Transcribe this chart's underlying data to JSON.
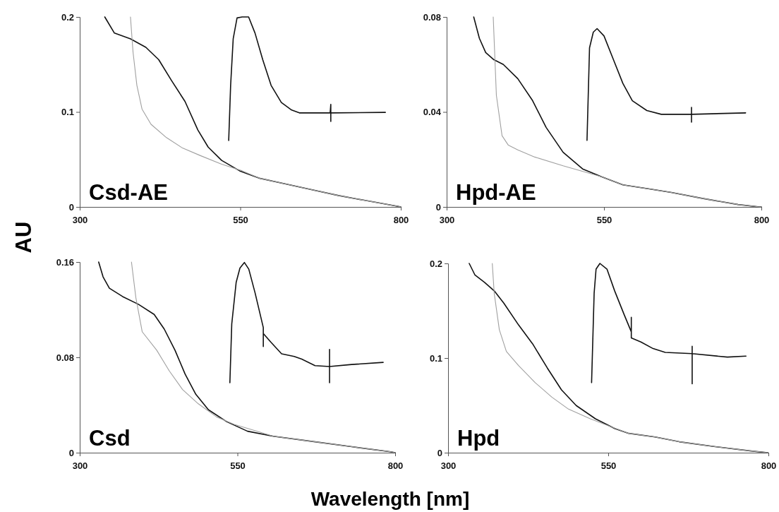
{
  "chart_data": [
    {
      "type": "line",
      "title": "Csd-AE",
      "ylabel": "AU",
      "xlim": [
        300,
        800
      ],
      "xticks": [
        300,
        550,
        800
      ],
      "ylim": [
        0,
        0.2
      ],
      "yticks": [
        0,
        0.1,
        0.2
      ],
      "grid": false,
      "series": [
        {
          "color": "#111111",
          "x": [
            339,
            354,
            379,
            403,
            423,
            443,
            464,
            484,
            500,
            521,
            549,
            581,
            622,
            662,
            703,
            743,
            796,
            800
          ],
          "values": [
            0.2,
            0.183,
            0.177,
            0.168,
            0.155,
            0.133,
            0.111,
            0.081,
            0.063,
            0.049,
            0.038,
            0.03,
            0.024,
            0.018,
            0.012,
            0.007,
            0.0005,
            0
          ]
        },
        {
          "color": "#a0a0a0",
          "x": [
            379,
            383,
            389,
            397,
            411,
            435,
            460,
            488,
            521,
            553,
            581,
            622,
            662,
            703,
            743,
            796,
            800
          ],
          "values": [
            0.2,
            0.163,
            0.128,
            0.103,
            0.087,
            0.073,
            0.062,
            0.054,
            0.045,
            0.038,
            0.03,
            0.024,
            0.018,
            0.012,
            0.007,
            0.0005,
            0
          ]
        },
        {
          "color": "#111111",
          "x": [
            532,
            535,
            539,
            545,
            553,
            563,
            573,
            585,
            598,
            614,
            630,
            642,
            690,
            691,
            691,
            691,
            776
          ],
          "values": [
            0.07,
            0.128,
            0.177,
            0.199,
            0.2,
            0.2,
            0.183,
            0.155,
            0.128,
            0.11,
            0.102,
            0.099,
            0.099,
            0.108,
            0.09,
            0.099,
            0.0995
          ]
        }
      ]
    },
    {
      "type": "line",
      "title": "Hpd-AE",
      "xlim": [
        300,
        800
      ],
      "xticks": [
        300,
        550,
        800
      ],
      "ylim": [
        0,
        0.08
      ],
      "yticks": [
        0,
        0.04,
        0.08
      ],
      "grid": false,
      "series": [
        {
          "color": "#111111",
          "x": [
            343,
            352,
            362,
            375,
            390,
            413,
            436,
            458,
            485,
            516,
            546,
            580,
            622,
            657,
            706,
            763,
            797,
            800
          ],
          "values": [
            0.08,
            0.071,
            0.065,
            0.062,
            0.06,
            0.054,
            0.045,
            0.0335,
            0.023,
            0.016,
            0.0127,
            0.0093,
            0.0076,
            0.0061,
            0.0036,
            0.001,
            0,
            0
          ]
        },
        {
          "color": "#a0a0a0",
          "x": [
            374,
            379,
            388,
            398,
            413,
            440,
            485,
            546,
            580,
            622,
            657,
            706,
            763,
            797,
            800
          ],
          "values": [
            0.08,
            0.047,
            0.03,
            0.026,
            0.024,
            0.021,
            0.0173,
            0.0127,
            0.0093,
            0.0076,
            0.0061,
            0.0036,
            0.001,
            0,
            0
          ]
        },
        {
          "color": "#111111",
          "x": [
            523,
            527,
            533,
            539,
            550,
            565,
            580,
            595,
            618,
            641,
            689,
            689,
            689,
            689,
            775
          ],
          "values": [
            0.028,
            0.067,
            0.0736,
            0.0751,
            0.072,
            0.062,
            0.052,
            0.0447,
            0.0406,
            0.039,
            0.039,
            0.0419,
            0.0357,
            0.039,
            0.0396
          ]
        }
      ]
    },
    {
      "type": "line",
      "title": "Csd",
      "xlabel": "Wavelength [nm]",
      "xlim": [
        300,
        800
      ],
      "xticks": [
        300,
        550,
        800
      ],
      "ylim": [
        0,
        0.16
      ],
      "yticks": [
        0,
        0.08,
        0.16
      ],
      "grid": false,
      "series": [
        {
          "color": "#111111",
          "x": [
            330,
            337,
            347,
            368,
            393,
            418,
            434,
            451,
            467,
            484,
            504,
            533,
            566,
            607,
            669,
            731,
            793,
            800
          ],
          "values": [
            0.16,
            0.1475,
            0.138,
            0.131,
            0.1245,
            0.116,
            0.1037,
            0.086,
            0.066,
            0.049,
            0.036,
            0.026,
            0.018,
            0.0138,
            0.0094,
            0.005,
            0.0007,
            0
          ]
        },
        {
          "color": "#a0a0a0",
          "x": [
            382,
            389,
            399,
            422,
            442,
            463,
            488,
            517,
            545,
            587,
            607,
            669,
            731,
            793,
            800
          ],
          "values": [
            0.16,
            0.13,
            0.1015,
            0.086,
            0.0686,
            0.053,
            0.041,
            0.03,
            0.0237,
            0.017,
            0.0138,
            0.0094,
            0.005,
            0.0007,
            0
          ]
        },
        {
          "color": "#111111",
          "x": [
            538,
            541,
            548,
            554,
            561,
            568,
            578,
            591,
            591,
            591,
            603,
            620,
            640,
            652,
            673,
            696,
            696,
            696,
            696,
            731,
            781
          ],
          "values": [
            0.0587,
            0.108,
            0.143,
            0.155,
            0.1596,
            0.154,
            0.134,
            0.105,
            0.089,
            0.1,
            0.0927,
            0.083,
            0.0807,
            0.0785,
            0.073,
            0.0723,
            0.0866,
            0.0587,
            0.0723,
            0.074,
            0.0758
          ]
        }
      ]
    },
    {
      "type": "line",
      "title": "Hpd",
      "xlim": [
        300,
        800
      ],
      "xticks": [
        300,
        550,
        800
      ],
      "ylim": [
        0,
        0.2
      ],
      "yticks": [
        0,
        0.1,
        0.2
      ],
      "grid": false,
      "series": [
        {
          "color": "#111111",
          "x": [
            333,
            342,
            357,
            372,
            387,
            410,
            432,
            455,
            477,
            500,
            530,
            560,
            582,
            623,
            661,
            717,
            773,
            799
          ],
          "values": [
            0.2,
            0.1877,
            0.18,
            0.171,
            0.158,
            0.135,
            0.115,
            0.0894,
            0.0664,
            0.0498,
            0.0358,
            0.0255,
            0.0204,
            0.0166,
            0.0115,
            0.0064,
            0.0018,
            0
          ]
        },
        {
          "color": "#a0a0a0",
          "x": [
            369,
            372,
            380,
            391,
            410,
            436,
            462,
            488,
            522,
            552,
            582,
            623,
            661,
            717,
            773,
            799
          ],
          "values": [
            0.2,
            0.1686,
            0.13,
            0.107,
            0.092,
            0.074,
            0.0587,
            0.046,
            0.0358,
            0.028,
            0.0204,
            0.0166,
            0.0115,
            0.0064,
            0.0018,
            0
          ]
        },
        {
          "color": "#111111",
          "x": [
            524,
            528,
            531,
            537,
            548,
            560,
            575,
            586,
            586,
            586,
            601,
            620,
            639,
            681,
            681,
            681,
            681,
            736,
            765
          ],
          "values": [
            0.074,
            0.1686,
            0.194,
            0.2,
            0.194,
            0.171,
            0.1456,
            0.1277,
            0.143,
            0.1213,
            0.117,
            0.11,
            0.106,
            0.1047,
            0.1124,
            0.0728,
            0.1047,
            0.101,
            0.102
          ]
        }
      ]
    }
  ]
}
